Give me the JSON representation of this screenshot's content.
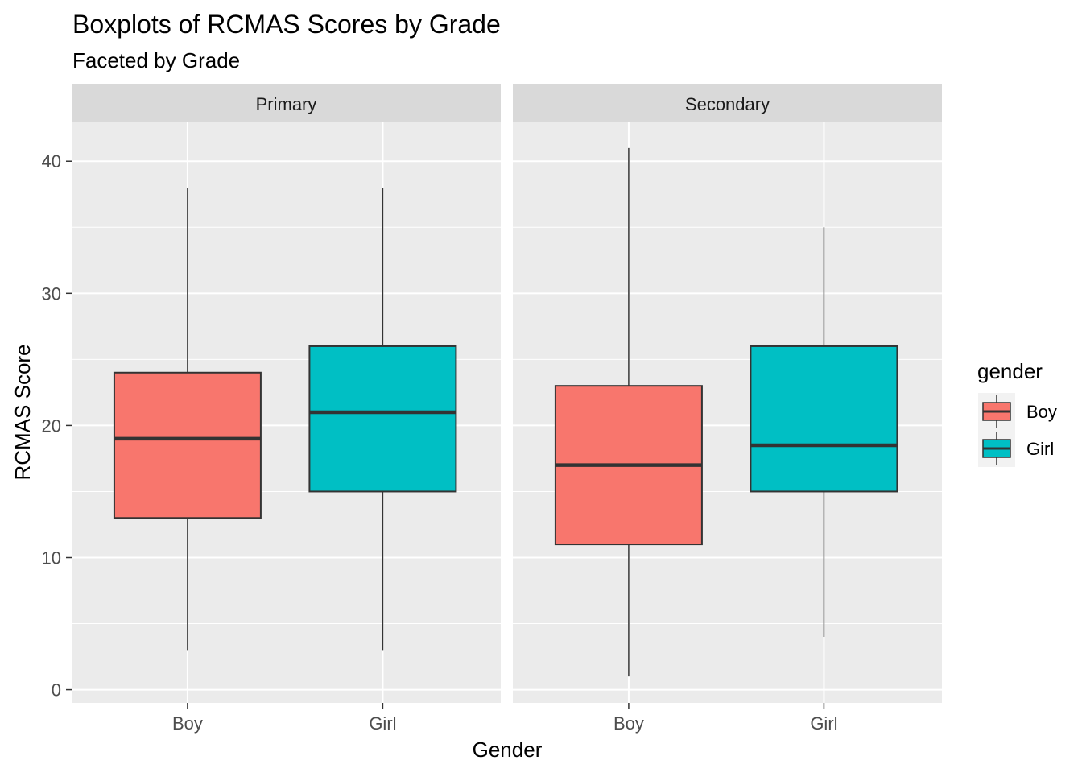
{
  "chart_data": {
    "type": "boxplot",
    "title": "Boxplots of RCMAS Scores by Grade",
    "subtitle": "Faceted by Grade",
    "xlabel": "Gender",
    "ylabel": "RCMAS Score",
    "ylim": [
      -1,
      43
    ],
    "yticks": [
      0,
      10,
      20,
      30,
      40
    ],
    "yticks_labels": [
      "0",
      "10",
      "20",
      "30",
      "40"
    ],
    "categories": [
      "Boy",
      "Girl"
    ],
    "grid": true,
    "legend": {
      "title": "gender",
      "position": "right",
      "items": [
        {
          "label": "Boy",
          "color": "#F8766D"
        },
        {
          "label": "Girl",
          "color": "#00BFC4"
        }
      ]
    },
    "facets": [
      {
        "label": "Primary",
        "boxes": [
          {
            "category": "Boy",
            "min": 3,
            "q1": 13,
            "median": 19,
            "q3": 24,
            "max": 38,
            "color": "#F8766D"
          },
          {
            "category": "Girl",
            "min": 3,
            "q1": 15,
            "median": 21,
            "q3": 26,
            "max": 38,
            "color": "#00BFC4"
          }
        ]
      },
      {
        "label": "Secondary",
        "boxes": [
          {
            "category": "Boy",
            "min": 1,
            "q1": 11,
            "median": 17,
            "q3": 23,
            "max": 41,
            "color": "#F8766D"
          },
          {
            "category": "Girl",
            "min": 4,
            "q1": 15,
            "median": 18.5,
            "q3": 26,
            "max": 35,
            "color": "#00BFC4"
          }
        ]
      }
    ]
  }
}
